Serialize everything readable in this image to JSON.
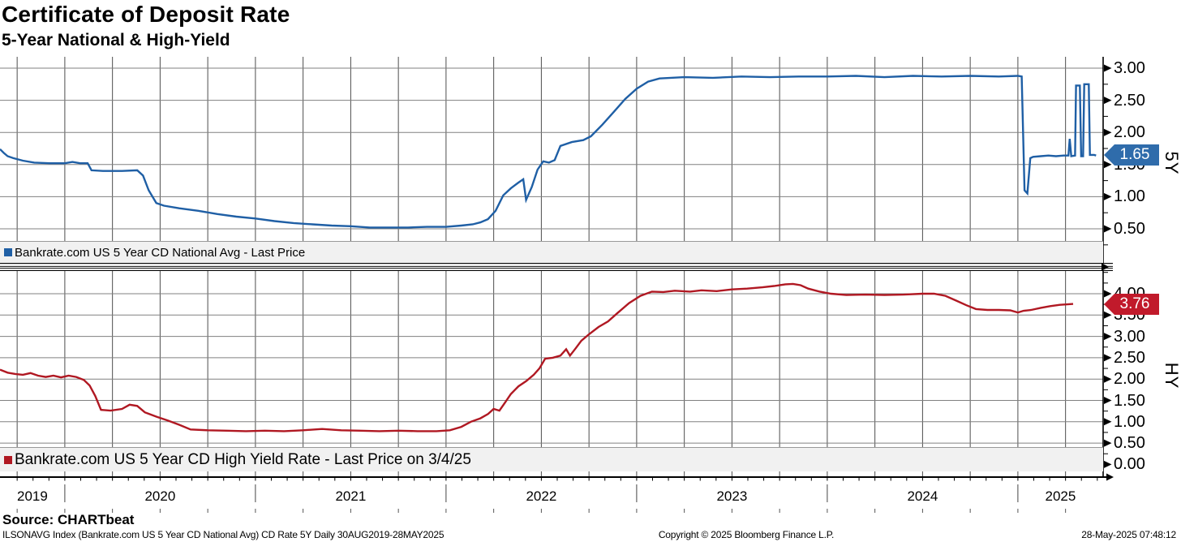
{
  "header": {
    "title": "Certificate of Deposit Rate",
    "subtitle": "5-Year National & High-Yield"
  },
  "footer": {
    "source_label": "Source: CHARTbeat",
    "security_info": "ILSONAVG Index (Bankrate.com US 5 Year CD National Avg) CD Rate 5Y  Daily 30AUG2019-28MAY2025",
    "copyright": "Copyright © 2025 Bloomberg Finance L.P.",
    "timestamp": "28-May-2025 07:48:12"
  },
  "colors": {
    "national_line": "#1f5fa5",
    "national_badge_bg": "#2f6cab",
    "high_yield_line": "#b01822",
    "high_yield_badge_bg": "#c11a2b",
    "grid_horizontal": "#808080",
    "grid_vertical": "#4d4d4d",
    "axis": "#000000",
    "legend_bg": "#f1f1f1"
  },
  "chart_data": {
    "type": "line",
    "title": "Certificate of Deposit Rate",
    "subtitle": "5-Year National & High-Yield",
    "x_range": [
      2019.66,
      2025.447
    ],
    "x_ticks": {
      "year_labels": [
        "2019",
        "2020",
        "2021",
        "2022",
        "2023",
        "2024",
        "2025"
      ],
      "year_boundaries": [
        2020,
        2021,
        2022,
        2023,
        2024,
        2025
      ]
    },
    "grid": {
      "vertical": "quarterly",
      "horizontal_step": 0.5
    },
    "legend_position": "bottom-left of each panel",
    "panels": [
      {
        "id": "5Y",
        "axis_label": "5Y",
        "legend_label": "Bankrate.com US 5 Year CD National Avg - Last Price",
        "last_price": 1.65,
        "last_price_label": "1.65",
        "ylim": [
          0,
          3.18
        ],
        "y_tick_labels": [
          "3.00",
          "2.50",
          "2.00",
          "1.50",
          "1.00",
          "0.50"
        ],
        "y_tick_values": [
          3.0,
          2.5,
          2.0,
          1.5,
          1.0,
          0.5
        ],
        "series": {
          "name": "Bankrate.com US 5 Year CD National Avg",
          "x": [
            2019.66,
            2019.68,
            2019.7,
            2019.73,
            2019.78,
            2019.84,
            2019.92,
            2020.0,
            2020.04,
            2020.08,
            2020.12,
            2020.14,
            2020.2,
            2020.3,
            2020.38,
            2020.41,
            2020.44,
            2020.48,
            2020.52,
            2020.6,
            2020.7,
            2020.8,
            2020.9,
            2021.0,
            2021.1,
            2021.2,
            2021.3,
            2021.4,
            2021.5,
            2021.6,
            2021.7,
            2021.8,
            2021.9,
            2022.0,
            2022.08,
            2022.14,
            2022.18,
            2022.22,
            2022.26,
            2022.3,
            2022.34,
            2022.38,
            2022.405,
            2022.42,
            2022.45,
            2022.48,
            2022.51,
            2022.54,
            2022.57,
            2022.6,
            2022.66,
            2022.72,
            2022.76,
            2022.82,
            2022.88,
            2022.94,
            2023.0,
            2023.06,
            2023.12,
            2023.25,
            2023.4,
            2023.55,
            2023.7,
            2023.85,
            2024.0,
            2024.15,
            2024.3,
            2024.45,
            2024.6,
            2024.75,
            2024.9,
            2025.0,
            2025.02,
            2025.035,
            2025.05,
            2025.065,
            2025.08,
            2025.12,
            2025.16,
            2025.2,
            2025.24,
            2025.265,
            2025.272,
            2025.28,
            2025.3,
            2025.305,
            2025.325,
            2025.332,
            2025.342,
            2025.348,
            2025.372,
            2025.378,
            2025.4,
            2025.41
          ],
          "y": [
            1.74,
            1.68,
            1.63,
            1.6,
            1.56,
            1.53,
            1.52,
            1.52,
            1.54,
            1.52,
            1.52,
            1.41,
            1.4,
            1.4,
            1.41,
            1.33,
            1.1,
            0.9,
            0.86,
            0.82,
            0.78,
            0.73,
            0.69,
            0.66,
            0.62,
            0.59,
            0.57,
            0.55,
            0.54,
            0.52,
            0.52,
            0.52,
            0.53,
            0.53,
            0.55,
            0.57,
            0.6,
            0.65,
            0.78,
            1.02,
            1.13,
            1.22,
            1.27,
            0.95,
            1.15,
            1.42,
            1.55,
            1.53,
            1.57,
            1.79,
            1.85,
            1.88,
            1.94,
            2.12,
            2.32,
            2.52,
            2.68,
            2.79,
            2.84,
            2.86,
            2.85,
            2.87,
            2.86,
            2.87,
            2.87,
            2.88,
            2.86,
            2.88,
            2.87,
            2.88,
            2.87,
            2.88,
            2.87,
            1.1,
            1.05,
            1.6,
            1.62,
            1.63,
            1.64,
            1.63,
            1.64,
            1.64,
            1.9,
            1.63,
            1.64,
            2.73,
            2.73,
            1.63,
            1.63,
            2.75,
            2.75,
            1.65,
            1.65,
            1.64
          ]
        }
      },
      {
        "id": "HY",
        "axis_label": "HY",
        "legend_label": "Bankrate.com US 5 Year CD High Yield Rate - Last Price on 3/4/25",
        "last_price": 3.76,
        "last_price_label": "3.76",
        "ylim": [
          -0.3,
          4.55
        ],
        "y_tick_labels": [
          "4.00",
          "3.50",
          "3.00",
          "2.50",
          "2.00",
          "1.50",
          "1.00",
          "0.50",
          "0.00"
        ],
        "y_tick_values": [
          4.0,
          3.5,
          3.0,
          2.5,
          2.0,
          1.5,
          1.0,
          0.5,
          0.0
        ],
        "series": {
          "name": "Bankrate.com US 5 Year CD High Yield Rate",
          "x": [
            2019.66,
            2019.7,
            2019.74,
            2019.78,
            2019.82,
            2019.86,
            2019.9,
            2019.94,
            2019.98,
            2020.02,
            2020.06,
            2020.1,
            2020.13,
            2020.16,
            2020.19,
            2020.24,
            2020.3,
            2020.34,
            2020.38,
            2020.42,
            2020.48,
            2020.54,
            2020.6,
            2020.66,
            2020.75,
            2020.85,
            2020.95,
            2021.05,
            2021.15,
            2021.25,
            2021.35,
            2021.45,
            2021.55,
            2021.65,
            2021.75,
            2021.85,
            2021.95,
            2022.02,
            2022.08,
            2022.13,
            2022.18,
            2022.22,
            2022.25,
            2022.28,
            2022.31,
            2022.34,
            2022.38,
            2022.42,
            2022.46,
            2022.49,
            2022.52,
            2022.56,
            2022.6,
            2022.63,
            2022.65,
            2022.68,
            2022.71,
            2022.75,
            2022.8,
            2022.85,
            2022.9,
            2022.96,
            2023.02,
            2023.08,
            2023.14,
            2023.2,
            2023.28,
            2023.34,
            2023.42,
            2023.5,
            2023.58,
            2023.66,
            2023.72,
            2023.78,
            2023.82,
            2023.86,
            2023.9,
            2023.96,
            2024.02,
            2024.1,
            2024.2,
            2024.3,
            2024.4,
            2024.5,
            2024.56,
            2024.62,
            2024.68,
            2024.73,
            2024.78,
            2024.84,
            2024.9,
            2024.96,
            2025.0,
            2025.03,
            2025.07,
            2025.12,
            2025.17,
            2025.22,
            2025.26,
            2025.29
          ],
          "y": [
            2.22,
            2.15,
            2.12,
            2.1,
            2.14,
            2.08,
            2.05,
            2.08,
            2.04,
            2.08,
            2.05,
            1.98,
            1.85,
            1.6,
            1.28,
            1.26,
            1.3,
            1.4,
            1.37,
            1.22,
            1.12,
            1.03,
            0.93,
            0.82,
            0.8,
            0.79,
            0.78,
            0.79,
            0.78,
            0.8,
            0.83,
            0.8,
            0.79,
            0.78,
            0.79,
            0.78,
            0.78,
            0.8,
            0.88,
            1.0,
            1.08,
            1.18,
            1.3,
            1.26,
            1.45,
            1.65,
            1.83,
            1.95,
            2.1,
            2.25,
            2.48,
            2.5,
            2.55,
            2.7,
            2.55,
            2.72,
            2.9,
            3.05,
            3.22,
            3.35,
            3.55,
            3.78,
            3.95,
            4.05,
            4.04,
            4.07,
            4.05,
            4.08,
            4.06,
            4.1,
            4.12,
            4.15,
            4.18,
            4.22,
            4.23,
            4.2,
            4.12,
            4.05,
            4.0,
            3.97,
            3.98,
            3.97,
            3.98,
            4.0,
            4.0,
            3.95,
            3.83,
            3.73,
            3.64,
            3.62,
            3.62,
            3.61,
            3.56,
            3.6,
            3.62,
            3.67,
            3.71,
            3.74,
            3.75,
            3.76
          ]
        }
      }
    ]
  }
}
